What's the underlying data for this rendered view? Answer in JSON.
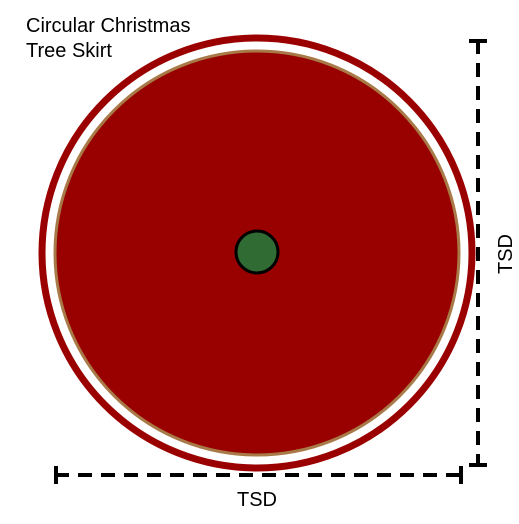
{
  "title": {
    "line1": "Circular Christmas",
    "line2": "Tree Skirt"
  },
  "dimensions": {
    "horizontal_label": "TSD",
    "vertical_label": "TSD"
  }
}
